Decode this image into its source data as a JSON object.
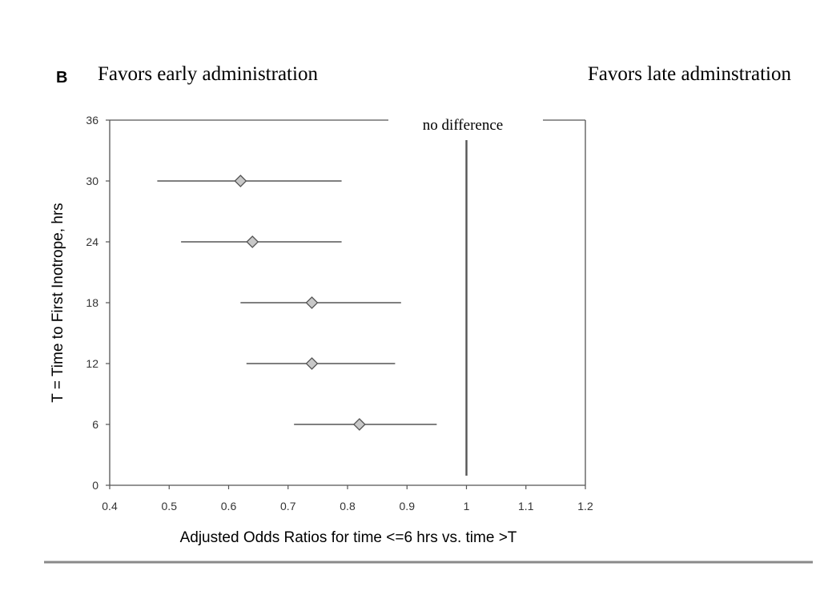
{
  "panel_label": "B",
  "header": {
    "left": "Favors early administration",
    "right": "Favors late adminstration"
  },
  "chart_data": {
    "type": "forest",
    "xlabel": "Adjusted Odds Ratios for time <=6 hrs vs. time >T",
    "ylabel": "T = Time to First Inotrope, hrs",
    "xlim": [
      0.4,
      1.2
    ],
    "ylim": [
      0,
      36
    ],
    "xticks": [
      "0.4",
      "0.5",
      "0.6",
      "0.7",
      "0.8",
      "0.9",
      "1",
      "1.1",
      "1.2"
    ],
    "yticks": [
      "0",
      "6",
      "12",
      "18",
      "24",
      "30",
      "36"
    ],
    "reference_line": {
      "x": 1,
      "label": "no difference"
    },
    "points": [
      {
        "T": 30,
        "or": 0.62,
        "lower": 0.48,
        "upper": 0.79
      },
      {
        "T": 24,
        "or": 0.64,
        "lower": 0.52,
        "upper": 0.79
      },
      {
        "T": 18,
        "or": 0.74,
        "lower": 0.62,
        "upper": 0.89
      },
      {
        "T": 12,
        "or": 0.74,
        "lower": 0.63,
        "upper": 0.88
      },
      {
        "T": 6,
        "or": 0.82,
        "lower": 0.71,
        "upper": 0.95
      }
    ],
    "marker": "diamond",
    "marker_color": "#c8c8c8",
    "line_color": "#555555",
    "grid": false
  }
}
